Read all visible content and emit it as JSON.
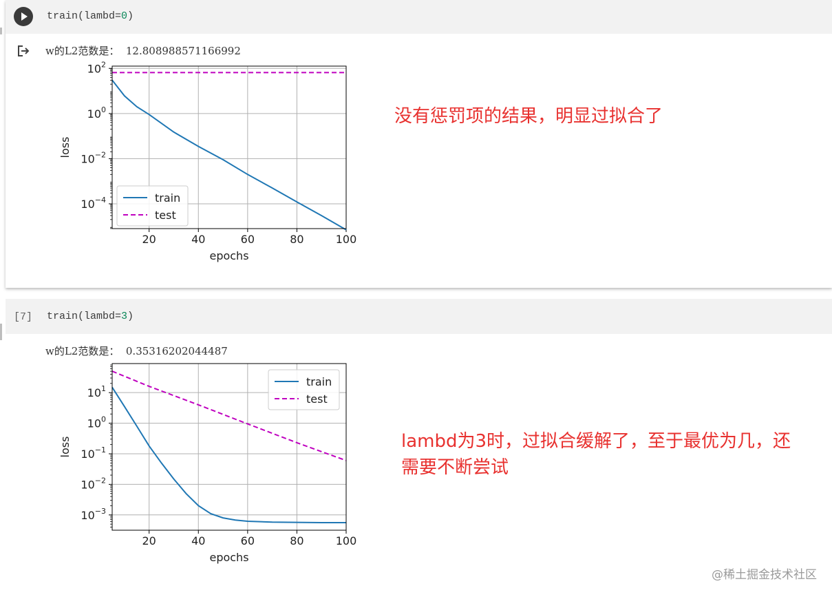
{
  "cell1": {
    "code": {
      "fn": "train(lambd=",
      "arg": "0",
      "close": ")"
    },
    "output_text": "w的L2范数是：  12.808988571166992",
    "annotation": "没有惩罚项的结果，明显过拟合了",
    "chart_data": {
      "type": "line",
      "xlabel": "epochs",
      "ylabel": "loss",
      "yscale": "log",
      "xlim": [
        5,
        100
      ],
      "ylim_exp": [
        -5.1,
        2.1
      ],
      "x_ticks": [
        "20",
        "40",
        "60",
        "80",
        "100"
      ],
      "y_ticks": [
        {
          "base": "10",
          "exp": "2"
        },
        {
          "base": "10",
          "exp": "0"
        },
        {
          "base": "10",
          "exp": "−2"
        },
        {
          "base": "10",
          "exp": "−4"
        }
      ],
      "grid": true,
      "legend_position": "lower-left",
      "series": [
        {
          "name": "train",
          "color": "#1f77b4",
          "style": "solid",
          "x": [
            5,
            10,
            15,
            20,
            30,
            40,
            50,
            60,
            70,
            80,
            90,
            100
          ],
          "y": [
            30,
            6,
            2,
            0.9,
            0.15,
            0.035,
            0.009,
            0.002,
            0.0005,
            0.00012,
            3e-05,
            7e-06
          ]
        },
        {
          "name": "test",
          "color": "#bf00bf",
          "style": "dashed",
          "x": [
            5,
            100
          ],
          "y": [
            65,
            65
          ]
        }
      ]
    }
  },
  "cell2": {
    "exec_count": "[7]",
    "code": {
      "fn": "train(lambd=",
      "arg": "3",
      "close": ")"
    },
    "output_text": "w的L2范数是：  0.35316202044487",
    "annotation_lines": [
      "lambd为3时，过拟合缓解了，至于最优为几，还",
      "需要不断尝试"
    ],
    "chart_data": {
      "type": "line",
      "xlabel": "epochs",
      "ylabel": "loss",
      "yscale": "log",
      "xlim": [
        5,
        100
      ],
      "ylim_exp": [
        -3.5,
        1.95
      ],
      "x_ticks": [
        "20",
        "40",
        "60",
        "80",
        "100"
      ],
      "y_ticks": [
        {
          "base": "10",
          "exp": "1"
        },
        {
          "base": "10",
          "exp": "0"
        },
        {
          "base": "10",
          "exp": "−1"
        },
        {
          "base": "10",
          "exp": "−2"
        },
        {
          "base": "10",
          "exp": "−3"
        }
      ],
      "grid": true,
      "legend_position": "upper-right",
      "series": [
        {
          "name": "train",
          "color": "#1f77b4",
          "style": "solid",
          "x": [
            5,
            10,
            15,
            20,
            25,
            30,
            35,
            40,
            45,
            50,
            55,
            60,
            70,
            80,
            90,
            100
          ],
          "y": [
            15,
            3.5,
            0.8,
            0.18,
            0.05,
            0.015,
            0.005,
            0.002,
            0.0011,
            0.0008,
            0.00068,
            0.00062,
            0.00058,
            0.00057,
            0.00056,
            0.00056
          ]
        },
        {
          "name": "test",
          "color": "#bf00bf",
          "style": "dashed",
          "x": [
            5,
            20,
            40,
            60,
            80,
            100
          ],
          "y": [
            50,
            16,
            4,
            0.95,
            0.23,
            0.06
          ]
        }
      ]
    }
  },
  "watermark": "@稀土掘金技术社区"
}
